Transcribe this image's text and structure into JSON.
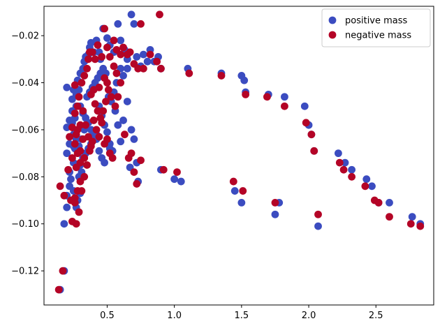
{
  "chart_data": {
    "type": "scatter",
    "title": "",
    "xlabel": "",
    "ylabel": "",
    "xlim": [
      0.03,
      2.93
    ],
    "ylim": [
      -0.1345,
      -0.0075
    ],
    "xticks": [
      0.5,
      1.0,
      1.5,
      2.0,
      2.5
    ],
    "xtick_labels": [
      "0.5",
      "1.0",
      "1.5",
      "2.0",
      "2.5"
    ],
    "yticks": [
      -0.12,
      -0.1,
      -0.08,
      -0.06,
      -0.04,
      -0.02
    ],
    "ytick_labels": [
      "−0.12",
      "−0.10",
      "−0.08",
      "−0.06",
      "−0.04",
      "−0.02"
    ],
    "grid": false,
    "legend_position": "top-right",
    "series": [
      {
        "name": "positive mass",
        "color": "#3b4cc0",
        "points": [
          [
            0.15,
            -0.128
          ],
          [
            0.18,
            -0.12
          ],
          [
            0.18,
            -0.1
          ],
          [
            0.2,
            -0.093
          ],
          [
            0.2,
            -0.088
          ],
          [
            0.22,
            -0.084
          ],
          [
            0.22,
            -0.078
          ],
          [
            0.25,
            -0.086
          ],
          [
            0.23,
            -0.081
          ],
          [
            0.25,
            -0.074
          ],
          [
            0.2,
            -0.07
          ],
          [
            0.26,
            -0.068
          ],
          [
            0.22,
            -0.066
          ],
          [
            0.25,
            -0.062
          ],
          [
            0.2,
            -0.059
          ],
          [
            0.24,
            -0.057
          ],
          [
            0.26,
            -0.055
          ],
          [
            0.24,
            -0.052
          ],
          [
            0.27,
            -0.05
          ],
          [
            0.24,
            -0.047
          ],
          [
            0.27,
            -0.045
          ],
          [
            0.25,
            -0.043
          ],
          [
            0.2,
            -0.042
          ],
          [
            0.29,
            -0.043
          ],
          [
            0.28,
            -0.039
          ],
          [
            0.3,
            -0.036
          ],
          [
            0.32,
            -0.034
          ],
          [
            0.33,
            -0.031
          ],
          [
            0.34,
            -0.029
          ],
          [
            0.36,
            -0.028
          ],
          [
            0.37,
            -0.025
          ],
          [
            0.38,
            -0.023
          ],
          [
            0.4,
            -0.027
          ],
          [
            0.42,
            -0.022
          ],
          [
            0.44,
            -0.027
          ],
          [
            0.45,
            -0.03
          ],
          [
            0.47,
            -0.017
          ],
          [
            0.5,
            -0.021
          ],
          [
            0.52,
            -0.024
          ],
          [
            0.55,
            -0.027
          ],
          [
            0.58,
            -0.015
          ],
          [
            0.6,
            -0.022
          ],
          [
            0.63,
            -0.026
          ],
          [
            0.65,
            -0.03
          ],
          [
            0.68,
            -0.011
          ],
          [
            0.7,
            -0.015
          ],
          [
            0.72,
            -0.029
          ],
          [
            0.75,
            -0.033
          ],
          [
            0.77,
            -0.028
          ],
          [
            0.8,
            -0.031
          ],
          [
            0.82,
            -0.026
          ],
          [
            0.85,
            -0.031
          ],
          [
            0.88,
            -0.029
          ],
          [
            0.9,
            -0.034
          ],
          [
            0.3,
            -0.05
          ],
          [
            0.32,
            -0.053
          ],
          [
            0.34,
            -0.055
          ],
          [
            0.36,
            -0.057
          ],
          [
            0.38,
            -0.06
          ],
          [
            0.4,
            -0.062
          ],
          [
            0.42,
            -0.064
          ],
          [
            0.44,
            -0.05
          ],
          [
            0.46,
            -0.054
          ],
          [
            0.48,
            -0.058
          ],
          [
            0.5,
            -0.061
          ],
          [
            0.52,
            -0.066
          ],
          [
            0.54,
            -0.069
          ],
          [
            0.56,
            -0.052
          ],
          [
            0.58,
            -0.058
          ],
          [
            0.6,
            -0.065
          ],
          [
            0.62,
            -0.056
          ],
          [
            0.65,
            -0.048
          ],
          [
            0.67,
            -0.076
          ],
          [
            0.68,
            -0.06
          ],
          [
            0.7,
            -0.064
          ],
          [
            0.72,
            -0.074
          ],
          [
            0.73,
            -0.082
          ],
          [
            0.3,
            -0.075
          ],
          [
            0.32,
            -0.072
          ],
          [
            0.34,
            -0.07
          ],
          [
            0.36,
            -0.068
          ],
          [
            0.38,
            -0.066
          ],
          [
            0.4,
            -0.064
          ],
          [
            0.42,
            -0.062
          ],
          [
            0.44,
            -0.069
          ],
          [
            0.46,
            -0.072
          ],
          [
            0.48,
            -0.074
          ],
          [
            0.5,
            -0.066
          ],
          [
            0.52,
            -0.068
          ],
          [
            0.3,
            -0.087
          ],
          [
            0.28,
            -0.09
          ],
          [
            0.27,
            -0.093
          ],
          [
            0.29,
            -0.08
          ],
          [
            0.31,
            -0.078
          ],
          [
            0.33,
            -0.06
          ],
          [
            0.35,
            -0.046
          ],
          [
            0.37,
            -0.044
          ],
          [
            0.39,
            -0.042
          ],
          [
            0.41,
            -0.04
          ],
          [
            0.43,
            -0.038
          ],
          [
            0.45,
            -0.036
          ],
          [
            0.47,
            -0.034
          ],
          [
            0.49,
            -0.036
          ],
          [
            0.51,
            -0.046
          ],
          [
            0.53,
            -0.048
          ],
          [
            0.55,
            -0.044
          ],
          [
            0.57,
            -0.04
          ],
          [
            0.6,
            -0.034
          ],
          [
            0.62,
            -0.037
          ],
          [
            0.65,
            -0.034
          ],
          [
            0.25,
            -0.067
          ],
          [
            0.27,
            -0.064
          ],
          [
            0.29,
            -0.067
          ],
          [
            0.31,
            -0.064
          ],
          [
            0.22,
            -0.056
          ],
          [
            0.9,
            -0.077
          ],
          [
            1.0,
            -0.081
          ],
          [
            1.05,
            -0.082
          ],
          [
            1.1,
            -0.034
          ],
          [
            1.35,
            -0.036
          ],
          [
            1.45,
            -0.086
          ],
          [
            1.5,
            -0.091
          ],
          [
            1.5,
            -0.037
          ],
          [
            1.52,
            -0.039
          ],
          [
            1.53,
            -0.044
          ],
          [
            1.7,
            -0.045
          ],
          [
            1.75,
            -0.096
          ],
          [
            1.78,
            -0.091
          ],
          [
            1.82,
            -0.046
          ],
          [
            1.97,
            -0.05
          ],
          [
            2.0,
            -0.058
          ],
          [
            2.02,
            -0.062
          ],
          [
            2.04,
            -0.069
          ],
          [
            2.07,
            -0.101
          ],
          [
            2.22,
            -0.07
          ],
          [
            2.27,
            -0.074
          ],
          [
            2.32,
            -0.077
          ],
          [
            2.43,
            -0.081
          ],
          [
            2.47,
            -0.084
          ],
          [
            2.52,
            -0.091
          ],
          [
            2.6,
            -0.091
          ],
          [
            2.77,
            -0.097
          ],
          [
            2.83,
            -0.1
          ]
        ]
      },
      {
        "name": "negative mass",
        "color": "#b40426",
        "points": [
          [
            0.14,
            -0.128
          ],
          [
            0.17,
            -0.12
          ],
          [
            0.15,
            -0.084
          ],
          [
            0.18,
            -0.088
          ],
          [
            0.21,
            -0.077
          ],
          [
            0.23,
            -0.09
          ],
          [
            0.26,
            -0.091
          ],
          [
            0.24,
            -0.099
          ],
          [
            0.27,
            -0.1
          ],
          [
            0.29,
            -0.095
          ],
          [
            0.3,
            -0.082
          ],
          [
            0.27,
            -0.076
          ],
          [
            0.3,
            -0.074
          ],
          [
            0.24,
            -0.072
          ],
          [
            0.28,
            -0.07
          ],
          [
            0.26,
            -0.066
          ],
          [
            0.28,
            -0.06
          ],
          [
            0.3,
            -0.058
          ],
          [
            0.26,
            -0.053
          ],
          [
            0.28,
            -0.05
          ],
          [
            0.29,
            -0.046
          ],
          [
            0.26,
            -0.041
          ],
          [
            0.31,
            -0.04
          ],
          [
            0.33,
            -0.037
          ],
          [
            0.35,
            -0.034
          ],
          [
            0.36,
            -0.03
          ],
          [
            0.37,
            -0.027
          ],
          [
            0.39,
            -0.027
          ],
          [
            0.41,
            -0.03
          ],
          [
            0.43,
            -0.024
          ],
          [
            0.46,
            -0.029
          ],
          [
            0.48,
            -0.017
          ],
          [
            0.5,
            -0.025
          ],
          [
            0.52,
            -0.029
          ],
          [
            0.55,
            -0.022
          ],
          [
            0.57,
            -0.026
          ],
          [
            0.6,
            -0.028
          ],
          [
            0.62,
            -0.025
          ],
          [
            0.65,
            -0.028
          ],
          [
            0.67,
            -0.027
          ],
          [
            0.7,
            -0.032
          ],
          [
            0.73,
            -0.034
          ],
          [
            0.77,
            -0.034
          ],
          [
            0.82,
            -0.028
          ],
          [
            0.87,
            -0.031
          ],
          [
            0.89,
            -0.011
          ],
          [
            0.9,
            -0.034
          ],
          [
            0.75,
            -0.015
          ],
          [
            0.32,
            -0.052
          ],
          [
            0.34,
            -0.058
          ],
          [
            0.36,
            -0.063
          ],
          [
            0.38,
            -0.067
          ],
          [
            0.4,
            -0.056
          ],
          [
            0.42,
            -0.06
          ],
          [
            0.44,
            -0.063
          ],
          [
            0.46,
            -0.057
          ],
          [
            0.48,
            -0.066
          ],
          [
            0.5,
            -0.064
          ],
          [
            0.52,
            -0.07
          ],
          [
            0.54,
            -0.072
          ],
          [
            0.56,
            -0.05
          ],
          [
            0.58,
            -0.046
          ],
          [
            0.6,
            -0.04
          ],
          [
            0.63,
            -0.062
          ],
          [
            0.66,
            -0.072
          ],
          [
            0.68,
            -0.07
          ],
          [
            0.7,
            -0.078
          ],
          [
            0.72,
            -0.083
          ],
          [
            0.75,
            -0.073
          ],
          [
            0.33,
            -0.072
          ],
          [
            0.35,
            -0.075
          ],
          [
            0.37,
            -0.069
          ],
          [
            0.39,
            -0.065
          ],
          [
            0.41,
            -0.049
          ],
          [
            0.43,
            -0.052
          ],
          [
            0.45,
            -0.055
          ],
          [
            0.47,
            -0.052
          ],
          [
            0.49,
            -0.048
          ],
          [
            0.51,
            -0.043
          ],
          [
            0.53,
            -0.046
          ],
          [
            0.55,
            -0.033
          ],
          [
            0.57,
            -0.036
          ],
          [
            0.28,
            -0.086
          ],
          [
            0.26,
            -0.089
          ],
          [
            0.31,
            -0.086
          ],
          [
            0.33,
            -0.08
          ],
          [
            0.38,
            -0.045
          ],
          [
            0.4,
            -0.043
          ],
          [
            0.44,
            -0.042
          ],
          [
            0.48,
            -0.038
          ],
          [
            0.5,
            -0.04
          ],
          [
            0.3,
            -0.069
          ],
          [
            0.32,
            -0.064
          ],
          [
            0.27,
            -0.062
          ],
          [
            0.24,
            -0.059
          ],
          [
            0.22,
            -0.063
          ],
          [
            0.92,
            -0.077
          ],
          [
            1.02,
            -0.078
          ],
          [
            1.11,
            -0.036
          ],
          [
            1.35,
            -0.037
          ],
          [
            1.44,
            -0.082
          ],
          [
            1.51,
            -0.086
          ],
          [
            1.53,
            -0.045
          ],
          [
            1.69,
            -0.046
          ],
          [
            1.75,
            -0.091
          ],
          [
            1.82,
            -0.05
          ],
          [
            1.98,
            -0.057
          ],
          [
            2.02,
            -0.062
          ],
          [
            2.04,
            -0.069
          ],
          [
            2.07,
            -0.096
          ],
          [
            2.23,
            -0.074
          ],
          [
            2.26,
            -0.077
          ],
          [
            2.32,
            -0.08
          ],
          [
            2.42,
            -0.084
          ],
          [
            2.49,
            -0.09
          ],
          [
            2.52,
            -0.091
          ],
          [
            2.6,
            -0.097
          ],
          [
            2.76,
            -0.1
          ],
          [
            2.83,
            -0.101
          ]
        ]
      }
    ]
  }
}
